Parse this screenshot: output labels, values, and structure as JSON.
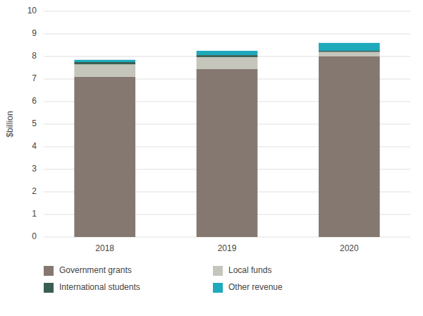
{
  "chart_data": {
    "type": "bar",
    "stacked": true,
    "categories": [
      "2018",
      "2019",
      "2020"
    ],
    "series": [
      {
        "name": "Government grants",
        "color": "#857870",
        "values": [
          7.1,
          7.45,
          8.0
        ]
      },
      {
        "name": "Local funds",
        "color": "#C5C5BB",
        "values": [
          0.55,
          0.52,
          0.2
        ]
      },
      {
        "name": "International students",
        "color": "#3A5F52",
        "values": [
          0.1,
          0.09,
          0.05
        ]
      },
      {
        "name": "Other revenue",
        "color": "#1FAABC",
        "values": [
          0.1,
          0.19,
          0.35
        ]
      }
    ],
    "y_label": "$billion",
    "ylim": [
      0,
      10
    ],
    "yticks": [
      0,
      1,
      2,
      3,
      4,
      5,
      6,
      7,
      8,
      9,
      10
    ],
    "grid": true,
    "legend": "bottom"
  }
}
